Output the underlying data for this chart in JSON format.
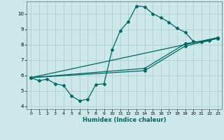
{
  "title": "",
  "xlabel": "Humidex (Indice chaleur)",
  "bg_color": "#cce8e8",
  "grid_color": "#aacccc",
  "line_color": "#006666",
  "xlim": [
    -0.5,
    23.5
  ],
  "ylim": [
    3.8,
    10.8
  ],
  "xticks": [
    0,
    1,
    2,
    3,
    4,
    5,
    6,
    7,
    8,
    9,
    10,
    11,
    12,
    13,
    14,
    15,
    16,
    17,
    18,
    19,
    20,
    21,
    22,
    23
  ],
  "yticks": [
    4,
    5,
    6,
    7,
    8,
    9,
    10
  ],
  "line1_x": [
    0,
    1,
    2,
    3,
    4,
    5,
    6,
    7,
    8,
    9,
    10,
    11,
    12,
    13,
    14,
    15,
    16,
    17,
    18,
    19,
    20,
    21,
    22,
    23
  ],
  "line1_y": [
    5.85,
    5.65,
    5.75,
    5.45,
    5.35,
    4.65,
    4.35,
    4.45,
    5.4,
    5.45,
    7.65,
    8.9,
    9.5,
    10.5,
    10.45,
    10.0,
    9.75,
    9.45,
    9.05,
    8.8,
    8.2,
    8.15,
    8.25,
    8.45
  ],
  "line2_x": [
    0,
    23
  ],
  "line2_y": [
    5.85,
    8.45
  ],
  "line3_x": [
    0,
    14,
    19,
    23
  ],
  "line3_y": [
    5.85,
    6.45,
    8.05,
    8.4
  ],
  "line4_x": [
    0,
    14,
    19,
    23
  ],
  "line4_y": [
    5.85,
    6.3,
    7.9,
    8.4
  ]
}
